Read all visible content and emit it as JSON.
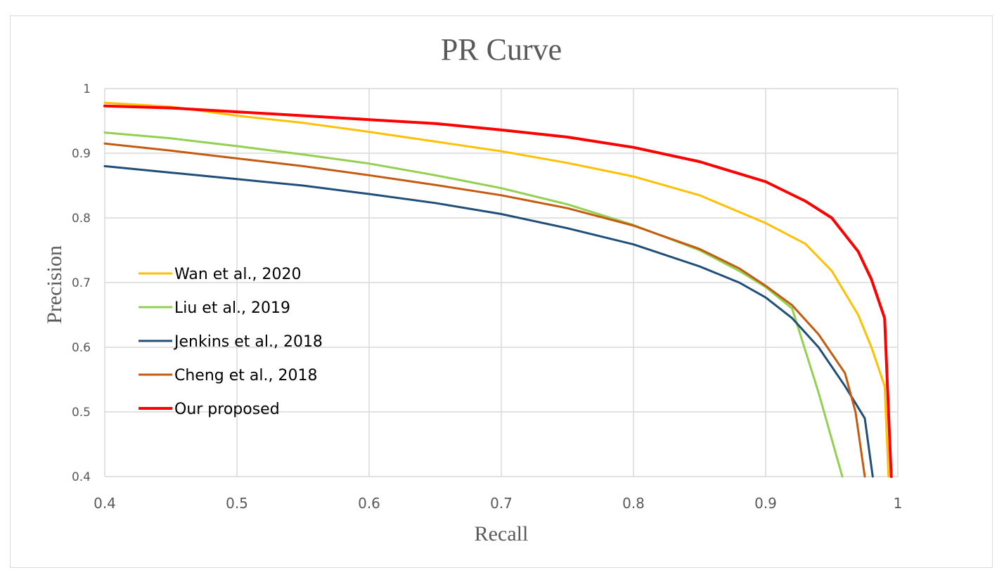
{
  "chart_data": {
    "type": "line",
    "title": "PR Curve",
    "xlabel": "Recall",
    "ylabel": "Precision",
    "xlim": [
      0.4,
      1
    ],
    "ylim": [
      0.4,
      1
    ],
    "grid": true,
    "legend_position": "left",
    "x_ticks": [
      "0.4",
      "0.5",
      "0.6",
      "0.7",
      "0.8",
      "0.9",
      "1"
    ],
    "y_ticks": [
      "0.4",
      "0.5",
      "0.6",
      "0.7",
      "0.8",
      "0.9",
      "1"
    ],
    "series": [
      {
        "name": "Wan et al., 2020",
        "color": "#FFC000",
        "points": [
          [
            0.4,
            0.978
          ],
          [
            0.45,
            0.972
          ],
          [
            0.5,
            0.958
          ],
          [
            0.55,
            0.947
          ],
          [
            0.6,
            0.933
          ],
          [
            0.65,
            0.918
          ],
          [
            0.7,
            0.903
          ],
          [
            0.75,
            0.885
          ],
          [
            0.8,
            0.864
          ],
          [
            0.85,
            0.835
          ],
          [
            0.9,
            0.792
          ],
          [
            0.93,
            0.76
          ],
          [
            0.95,
            0.718
          ],
          [
            0.97,
            0.65
          ],
          [
            0.98,
            0.6
          ],
          [
            0.99,
            0.54
          ],
          [
            0.993,
            0.4
          ]
        ]
      },
      {
        "name": "Liu et al., 2019",
        "color": "#92D050",
        "points": [
          [
            0.4,
            0.932
          ],
          [
            0.45,
            0.923
          ],
          [
            0.5,
            0.911
          ],
          [
            0.55,
            0.898
          ],
          [
            0.6,
            0.884
          ],
          [
            0.65,
            0.866
          ],
          [
            0.7,
            0.846
          ],
          [
            0.75,
            0.821
          ],
          [
            0.8,
            0.789
          ],
          [
            0.85,
            0.75
          ],
          [
            0.88,
            0.718
          ],
          [
            0.9,
            0.693
          ],
          [
            0.92,
            0.66
          ],
          [
            0.94,
            0.53
          ],
          [
            0.958,
            0.4
          ]
        ]
      },
      {
        "name": "Jenkins et al., 2018",
        "color": "#1F4E79",
        "points": [
          [
            0.4,
            0.88
          ],
          [
            0.45,
            0.87
          ],
          [
            0.5,
            0.86
          ],
          [
            0.55,
            0.85
          ],
          [
            0.6,
            0.837
          ],
          [
            0.65,
            0.823
          ],
          [
            0.7,
            0.806
          ],
          [
            0.75,
            0.784
          ],
          [
            0.8,
            0.759
          ],
          [
            0.85,
            0.725
          ],
          [
            0.88,
            0.7
          ],
          [
            0.9,
            0.677
          ],
          [
            0.92,
            0.645
          ],
          [
            0.94,
            0.6
          ],
          [
            0.96,
            0.54
          ],
          [
            0.975,
            0.49
          ],
          [
            0.981,
            0.4
          ]
        ]
      },
      {
        "name": "Cheng et al., 2018",
        "color": "#C55A11",
        "points": [
          [
            0.4,
            0.915
          ],
          [
            0.45,
            0.904
          ],
          [
            0.5,
            0.892
          ],
          [
            0.55,
            0.88
          ],
          [
            0.6,
            0.866
          ],
          [
            0.65,
            0.851
          ],
          [
            0.7,
            0.835
          ],
          [
            0.75,
            0.815
          ],
          [
            0.8,
            0.788
          ],
          [
            0.85,
            0.752
          ],
          [
            0.88,
            0.722
          ],
          [
            0.9,
            0.695
          ],
          [
            0.92,
            0.665
          ],
          [
            0.94,
            0.62
          ],
          [
            0.96,
            0.56
          ],
          [
            0.968,
            0.5
          ],
          [
            0.975,
            0.4
          ]
        ]
      },
      {
        "name": "Our proposed",
        "color": "#FF0000",
        "points": [
          [
            0.4,
            0.973
          ],
          [
            0.45,
            0.97
          ],
          [
            0.5,
            0.964
          ],
          [
            0.55,
            0.958
          ],
          [
            0.6,
            0.952
          ],
          [
            0.65,
            0.946
          ],
          [
            0.7,
            0.936
          ],
          [
            0.75,
            0.925
          ],
          [
            0.8,
            0.909
          ],
          [
            0.85,
            0.887
          ],
          [
            0.9,
            0.856
          ],
          [
            0.93,
            0.826
          ],
          [
            0.95,
            0.8
          ],
          [
            0.97,
            0.748
          ],
          [
            0.98,
            0.705
          ],
          [
            0.99,
            0.645
          ],
          [
            0.995,
            0.4
          ]
        ]
      }
    ]
  }
}
